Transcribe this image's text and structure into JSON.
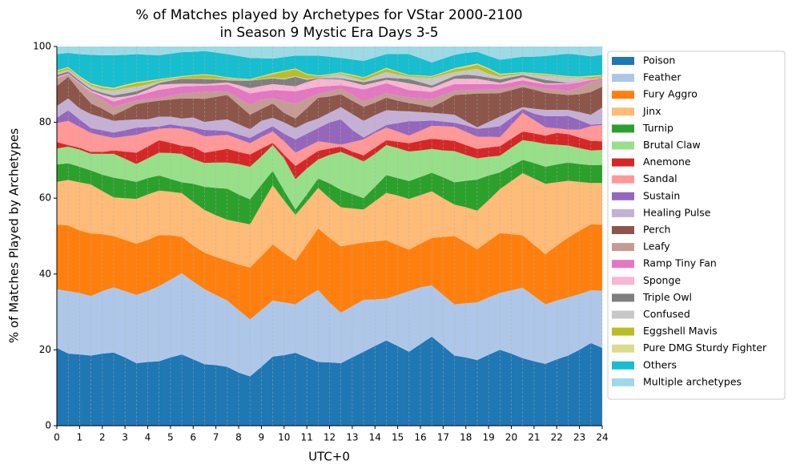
{
  "chart_data": {
    "type": "stacked_area",
    "title": [
      "% of Matches played by Archetypes for VStar 2000-2100",
      "in Season 9 Mystic Era Days 3-5"
    ],
    "xlabel": "UTC+0",
    "ylabel": "% of Matches Played by Archetypes",
    "x": [
      0,
      0.5,
      1,
      1.5,
      2,
      2.5,
      3,
      3.5,
      4,
      4.5,
      5,
      5.5,
      6,
      6.5,
      7,
      7.5,
      8,
      8.5,
      9,
      9.5,
      10,
      10.5,
      11,
      11.5,
      12,
      12.5,
      13,
      13.5,
      14,
      14.5,
      15,
      15.5,
      16,
      16.5,
      17,
      17.5,
      18,
      18.5,
      19,
      19.5,
      20,
      20.5,
      21,
      21.5,
      22,
      22.5,
      23,
      23.5,
      24
    ],
    "xlim": [
      0,
      24
    ],
    "xticks": [
      0,
      1,
      2,
      3,
      4,
      5,
      6,
      7,
      8,
      9,
      10,
      11,
      12,
      13,
      14,
      15,
      16,
      17,
      18,
      19,
      20,
      21,
      22,
      23,
      24
    ],
    "ylim": [
      0,
      100
    ],
    "yticks": [
      0,
      20,
      40,
      60,
      80,
      100
    ],
    "grid": true,
    "legend": "outside right",
    "series": [
      {
        "name": "Poison",
        "color": "#1f77b4",
        "values": [
          20.5,
          19,
          18.8,
          18.5,
          19,
          19.3,
          18,
          16.5,
          16.8,
          17,
          18,
          18.8,
          17.5,
          16.2,
          16,
          15.5,
          14,
          13,
          15.5,
          18.2,
          18.6,
          19.2,
          18,
          16.8,
          16.7,
          16.5,
          18,
          19.5,
          21,
          22.5,
          21,
          19.5,
          21.5,
          23.5,
          21,
          18.5,
          18,
          17.3,
          18.7,
          20,
          19,
          17.8,
          17,
          16.3,
          17.5,
          18.5,
          20,
          21.8,
          20.5
        ]
      },
      {
        "name": "Feather",
        "color": "#aec7e8",
        "values": [
          15.5,
          16.5,
          16.2,
          15.7,
          16.5,
          17.2,
          17.5,
          18,
          18.7,
          19.8,
          20.5,
          21.4,
          20.5,
          19.8,
          18.5,
          17.5,
          16.5,
          15,
          15,
          14.8,
          13.9,
          12.8,
          16,
          19,
          15.8,
          13.3,
          13.5,
          13.7,
          12.3,
          11,
          13.5,
          16,
          15,
          13.5,
          13.5,
          13.5,
          14.3,
          15.2,
          15.1,
          15,
          16.7,
          18.6,
          17.2,
          15.7,
          15.5,
          15.3,
          14.7,
          13.9,
          15.1
        ]
      },
      {
        "name": "Fury Aggro",
        "color": "#ff7f0e",
        "values": [
          17,
          17.3,
          16.5,
          16.5,
          15,
          13.5,
          13.5,
          13.5,
          13.5,
          13.5,
          11.7,
          9.6,
          9.5,
          9.6,
          10,
          10.5,
          12,
          13.7,
          14.2,
          14.8,
          13,
          11.5,
          13.7,
          16.2,
          17,
          17.5,
          16.3,
          15.1,
          15.3,
          15.4,
          13.1,
          10.9,
          11.5,
          12.5,
          15.3,
          18,
          16,
          14,
          14.9,
          15.8,
          14.8,
          13.8,
          13.5,
          13.2,
          14.5,
          15.8,
          16.7,
          17.4,
          17.4
        ]
      },
      {
        "name": "Jinx",
        "color": "#ffbb78",
        "values": [
          11.3,
          12,
          12.7,
          12.9,
          11.4,
          10.2,
          11,
          11.8,
          12,
          11.7,
          11.5,
          11.5,
          11.5,
          11.3,
          11,
          10.8,
          11.2,
          11.4,
          13.6,
          15.6,
          13.9,
          12.1,
          11.4,
          10.7,
          10.5,
          10.3,
          9.5,
          8.7,
          10.6,
          12.5,
          13.1,
          13.4,
          12.8,
          12.3,
          10.2,
          8.3,
          9.3,
          10.2,
          10.8,
          11.6,
          14,
          16.4,
          17.5,
          18.6,
          16.7,
          15,
          12.9,
          10.9,
          11
        ]
      },
      {
        "name": "Turnip",
        "color": "#2ca02c",
        "values": [
          4.6,
          4.4,
          4.1,
          3.7,
          4.3,
          5.2,
          4.9,
          4.5,
          4.3,
          4,
          3.4,
          2.9,
          4.8,
          6.1,
          7.2,
          8.2,
          7.3,
          6.6,
          5.2,
          3.8,
          2.6,
          1.4,
          1.9,
          2.5,
          3.9,
          4.6,
          3.8,
          3,
          3.8,
          4.7,
          4.6,
          4.7,
          4.8,
          4.9,
          5.5,
          5.9,
          7,
          8.2,
          6.5,
          4.4,
          4,
          3.5,
          4.1,
          4.5,
          4.7,
          4.8,
          4.7,
          4.7,
          4.8
        ]
      },
      {
        "name": "Brutal Claw",
        "color": "#98df8a",
        "values": [
          4.2,
          4.4,
          4.5,
          4.4,
          5.5,
          6.3,
          5.5,
          4.7,
          5.2,
          6,
          6.8,
          7.5,
          6.5,
          6.3,
          6.7,
          6.9,
          8,
          8.6,
          7.5,
          6.8,
          8.5,
          8,
          6.8,
          5,
          7.5,
          10,
          9.9,
          9.7,
          8.7,
          7.9,
          7.9,
          7.8,
          7,
          6.3,
          7.1,
          8.2,
          6.8,
          5.6,
          4.9,
          4.4,
          4.8,
          5.2,
          5.6,
          6,
          5.2,
          4.5,
          4.2,
          3.9,
          3.9
        ]
      },
      {
        "name": "Anemone",
        "color": "#d62728",
        "values": [
          1.7,
          0.4,
          0.5,
          0.5,
          0.5,
          0.9,
          1.9,
          3,
          3.1,
          3.3,
          2.7,
          2.1,
          3.2,
          2.7,
          3.1,
          3.6,
          3.2,
          3.2,
          2.1,
          0.6,
          1,
          3.5,
          2.7,
          2.3,
          1.7,
          1.4,
          1.3,
          1.6,
          1.6,
          1.3,
          1.7,
          2.2,
          2.5,
          2.7,
          2.8,
          2.7,
          2.6,
          2.5,
          2.5,
          2.5,
          2.4,
          2.3,
          2.2,
          2.2,
          3.1,
          3,
          2.8,
          2.5,
          2.3
        ]
      },
      {
        "name": "Sandal",
        "color": "#ff9896",
        "values": [
          5,
          6.4,
          5.5,
          5,
          4.3,
          3.3,
          4,
          4.7,
          3.9,
          3,
          3.9,
          4.5,
          4,
          4.3,
          4,
          3.7,
          3.4,
          3,
          3,
          3,
          3.5,
          3.5,
          3,
          2.5,
          1.5,
          0.5,
          2.5,
          4.2,
          3.9,
          3.3,
          2.7,
          2,
          2.7,
          3.4,
          3.6,
          3.7,
          3.5,
          3.2,
          2.8,
          2.4,
          3.6,
          4.9,
          3.5,
          2.2,
          1.2,
          1.2,
          2.1,
          3.9,
          4.3
        ]
      },
      {
        "name": "Sustain",
        "color": "#9467bd",
        "values": [
          1.4,
          2.8,
          2,
          1.3,
          1.4,
          1.4,
          1.6,
          1.9,
          1.3,
          0.6,
          1,
          0.7,
          1.2,
          1.7,
          1.4,
          1,
          1.2,
          1.4,
          1.4,
          1.4,
          2,
          3.5,
          3.5,
          3.5,
          5.4,
          6.7,
          3.2,
          0.5,
          0.5,
          0.7,
          2.2,
          3.8,
          2.5,
          1.4,
          1.2,
          1.1,
          1.7,
          2.1,
          2.4,
          2.9,
          1.9,
          1,
          1.7,
          2.9,
          3.2,
          3.6,
          2.5,
          0.4,
          0.3
        ]
      },
      {
        "name": "Healing Pulse",
        "color": "#c5b0d5",
        "values": [
          3.1,
          3.1,
          2.9,
          3.7,
          3.4,
          3.1,
          2.7,
          2.2,
          2,
          2.6,
          2,
          2,
          2.6,
          2.1,
          2.6,
          3.1,
          2.7,
          2.3,
          2.9,
          2.2,
          3,
          3,
          3,
          2.5,
          2.5,
          3.2,
          4.2,
          4.4,
          4.2,
          3.9,
          3.2,
          2.6,
          2.4,
          2,
          2.1,
          2.1,
          1.1,
          0.4,
          1.5,
          2.5,
          1.6,
          0.5,
          1.3,
          1.7,
          1.7,
          1.6,
          2.1,
          2.6,
          4.3
        ]
      },
      {
        "name": "Perch",
        "color": "#8c564b",
        "values": [
          5.3,
          5.7,
          4.6,
          2.8,
          2.3,
          1.5,
          2.7,
          4,
          4.5,
          4.2,
          4.5,
          5.3,
          5,
          6.1,
          6.2,
          6.4,
          5.1,
          3.8,
          3.1,
          3.8,
          2.5,
          2.5,
          3.7,
          5.5,
          4.3,
          3.4,
          3.5,
          3.7,
          3.3,
          3.3,
          2.7,
          2.2,
          1.9,
          1.5,
          3.2,
          5.2,
          7.1,
          8.9,
          7.5,
          6.2,
          5.7,
          5.3,
          5,
          4.5,
          4.2,
          3.9,
          4.7,
          6,
          5.5
        ]
      },
      {
        "name": "Leafy",
        "color": "#c49c94",
        "values": [
          1.9,
          0.6,
          1.8,
          2.7,
          2.4,
          2.1,
          1.6,
          0.9,
          0.8,
          0.7,
          1,
          1.3,
          1.5,
          1.8,
          1.4,
          1,
          1.8,
          2.6,
          2.5,
          1.4,
          3.1,
          3.9,
          2.5,
          1,
          1.4,
          1.5,
          1.6,
          1.4,
          1.4,
          1.2,
          1.4,
          1.4,
          1.7,
          2.1,
          1.7,
          1.1,
          1.1,
          1,
          1,
          1,
          0.8,
          0.6,
          0.8,
          1.1,
          1.1,
          1.1,
          1.8,
          2.6,
          1.8
        ]
      },
      {
        "name": "Ramp Tiny Fan",
        "color": "#e377c2",
        "values": [
          0.2,
          0.1,
          0.2,
          0.3,
          0.8,
          1.5,
          1.4,
          1.3,
          1.7,
          2.2,
          2,
          1.9,
          1.8,
          1.7,
          1.7,
          1.8,
          2.5,
          3,
          2.1,
          2.1,
          2.8,
          3.3,
          2.6,
          1.9,
          1.4,
          0.9,
          2,
          3.2,
          2.9,
          2.6,
          2.3,
          2,
          2,
          1.9,
          1.9,
          1.8,
          1.6,
          1.5,
          1.5,
          1.3,
          1.2,
          1.2,
          1.1,
          1.1,
          1.4,
          1.8,
          1.4,
          0.6,
          0.4
        ]
      },
      {
        "name": "Sponge",
        "color": "#f7b6d2",
        "values": [
          0.3,
          0.2,
          0.2,
          0.4,
          0.5,
          1,
          0.5,
          0.4,
          0.8,
          1.3,
          1.1,
          0.7,
          0.6,
          0.4,
          0.5,
          0.5,
          0.9,
          1.4,
          1.5,
          1.6,
          1.4,
          1.3,
          1.8,
          2.1,
          1.8,
          1.5,
          1.3,
          1.1,
          1,
          0.9,
          1.4,
          1.8,
          1.4,
          1.1,
          1.2,
          1.4,
          1.4,
          1.4,
          0.9,
          0.4,
          0.7,
          0.8,
          0.6,
          0.3,
          0.3,
          0.2,
          0.3,
          0.3,
          0.1
        ]
      },
      {
        "name": "Triple Owl",
        "color": "#7f7f7f",
        "values": [
          0.5,
          0.5,
          0.5,
          0.4,
          0.5,
          0.6,
          0.8,
          0.8,
          0.6,
          0.5,
          0.9,
          1.3,
          1.3,
          1.3,
          1,
          0.6,
          1.2,
          2,
          1.7,
          1.5,
          1.5,
          2.5,
          0.6,
          0.2,
          0.3,
          0.3,
          0.5,
          0.8,
          0.7,
          0.6,
          0.8,
          1.1,
          0.9,
          0.6,
          0.7,
          0.7,
          1.1,
          0.8,
          0.8,
          0.9,
          0.7,
          0.6,
          0.7,
          0.9,
          0.5,
          0.1,
          0.1,
          0.1,
          0.1
        ]
      },
      {
        "name": "Confused",
        "color": "#c7c7c7",
        "values": [
          0.5,
          0.5,
          0.6,
          0.8,
          0.9,
          1.3,
          1.4,
          1.2,
          0.8,
          0.4,
          0.3,
          0.1,
          0.1,
          0.2,
          0.2,
          0.3,
          0.2,
          0.1,
          0.1,
          0.2,
          0.3,
          0.2,
          0.3,
          0.1,
          0.6,
          1.1,
          0.7,
          0.4,
          1,
          1.5,
          1,
          0.6,
          1.2,
          2,
          1.5,
          1.1,
          1.1,
          1.8,
          1,
          0.7,
          0.5,
          0.3,
          0.8,
          1.1,
          1.3,
          1.4,
          0.7,
          0,
          0.1
        ]
      },
      {
        "name": "Eggshell Mavis",
        "color": "#bcbd22",
        "values": [
          0.5,
          0.5,
          0.3,
          0.4,
          0.5,
          0.4,
          0.6,
          0.9,
          0.7,
          0.4,
          0.3,
          0.4,
          0.7,
          0.9,
          0.7,
          0.3,
          0.2,
          0.1,
          0.6,
          0.9,
          1.8,
          1.8,
          1.1,
          0.4,
          0.2,
          0.3,
          0.5,
          0.7,
          0.7,
          0.8,
          0.6,
          0.3,
          0.4,
          0.3,
          0.5,
          0.7,
          0.8,
          1.1,
          1.2,
          0.5,
          0.4,
          0.2,
          0.2,
          0.3,
          0.2,
          0.2,
          0.2,
          0.4,
          0.4
        ]
      },
      {
        "name": "Pure DMG Sturdy Fighter",
        "color": "#dbdb8d",
        "values": [
          0.2,
          0.2,
          0.3,
          0.3,
          0.3,
          0.3,
          0.3,
          0.3,
          0.3,
          0.2,
          0.2,
          0.2,
          0.2,
          0.2,
          0.2,
          0.2,
          0.2,
          0.2,
          0.2,
          0.3,
          0.2,
          0.2,
          0.2,
          0.2,
          0.2,
          0.2,
          0.3,
          0.2,
          0.2,
          0.3,
          0.2,
          0.2,
          0.2,
          0.2,
          0.2,
          0.3,
          0.4,
          0.3,
          0.3,
          0.3,
          0.2,
          0.2,
          0.2,
          0.2,
          0.2,
          0.2,
          0.2,
          0.3,
          0.2
        ]
      },
      {
        "name": "Others",
        "color": "#17becf",
        "values": [
          4.3,
          3.7,
          5.8,
          7.5,
          8.2,
          8.6,
          7.9,
          7.4,
          6.8,
          6.3,
          6.3,
          6.3,
          6.1,
          6.1,
          6,
          6.1,
          5.9,
          5.6,
          4.7,
          3.8,
          3.6,
          3.4,
          4.8,
          5.2,
          4.6,
          3.8,
          4,
          4.3,
          4,
          3.6,
          4.6,
          5.5,
          4.5,
          3.6,
          3.6,
          3.5,
          3.4,
          3.1,
          3.2,
          3.7,
          3.9,
          4.1,
          4.3,
          4.7,
          5.3,
          5.9,
          5.7,
          5.1,
          5.3
        ]
      },
      {
        "name": "Multiple archetypes",
        "color": "#9edae5",
        "values": [
          2,
          1.7,
          2,
          2.2,
          2.3,
          2.3,
          2.2,
          2,
          2.2,
          2.3,
          1.9,
          1.5,
          1.4,
          1.2,
          1.6,
          2,
          2.5,
          3,
          3.1,
          3.2,
          2.8,
          2.4,
          2.4,
          2.4,
          2.7,
          3,
          3.4,
          3.8,
          2.9,
          2,
          2,
          2,
          3.1,
          4.2,
          3.2,
          2.2,
          1.7,
          1.4,
          2.5,
          3.5,
          3.1,
          2.7,
          2.7,
          2.5,
          2.2,
          1.9,
          2.2,
          2.6,
          2.2
        ]
      }
    ]
  }
}
